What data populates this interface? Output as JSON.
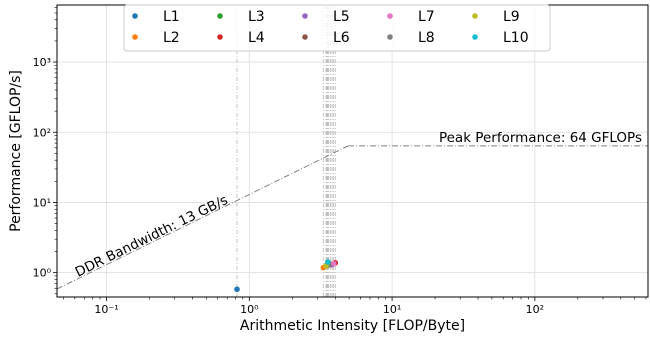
{
  "chart_data": {
    "type": "scatter",
    "xlabel": "Arithmetic Intensity [FLOP/Byte]",
    "ylabel": "Performance [GFLOP/s]",
    "xscale": "log",
    "yscale": "log",
    "xlim": [
      0.045,
      620
    ],
    "ylim": [
      0.45,
      6500
    ],
    "grid": true,
    "legend_position": "top-center",
    "x_ticks": [
      {
        "value": 0.1,
        "label": "10⁻¹"
      },
      {
        "value": 1,
        "label": "10⁰"
      },
      {
        "value": 10,
        "label": "10¹"
      },
      {
        "value": 100,
        "label": "10²"
      }
    ],
    "y_ticks": [
      {
        "value": 1,
        "label": "10⁰"
      },
      {
        "value": 10,
        "label": "10¹"
      },
      {
        "value": 100,
        "label": "10²"
      },
      {
        "value": 1000,
        "label": "10³"
      }
    ],
    "roofline": {
      "bandwidth_label": "DDR Bandwidth: 13 GB/s",
      "bandwidth": 13,
      "peak_label": "Peak Performance: 64 GFLOPs",
      "peak": 64,
      "line_color": "#808080"
    },
    "series": [
      {
        "name": "L1",
        "color": "#1f77b4",
        "x": 0.82,
        "y": 0.58
      },
      {
        "name": "L2",
        "color": "#ff7f0e",
        "x": 3.3,
        "y": 1.18
      },
      {
        "name": "L3",
        "color": "#2ca02c",
        "x": 3.5,
        "y": 1.3
      },
      {
        "name": "L4",
        "color": "#d62728",
        "x": 4.0,
        "y": 1.38
      },
      {
        "name": "L5",
        "color": "#9467bd",
        "x": 3.8,
        "y": 1.3
      },
      {
        "name": "L6",
        "color": "#8c564b",
        "x": 3.7,
        "y": 1.32
      },
      {
        "name": "L7",
        "color": "#e377c2",
        "x": 3.9,
        "y": 1.35
      },
      {
        "name": "L8",
        "color": "#7f7f7f",
        "x": 3.6,
        "y": 1.28
      },
      {
        "name": "L9",
        "color": "#bcbd22",
        "x": 3.45,
        "y": 1.25
      },
      {
        "name": "L10",
        "color": "#17becf",
        "x": 3.55,
        "y": 1.42
      }
    ]
  }
}
